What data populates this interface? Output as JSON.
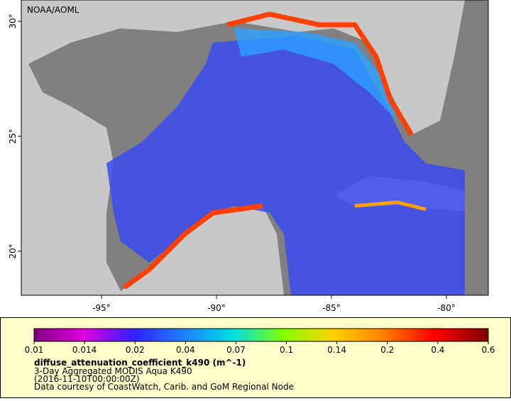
{
  "credit": "NOAA/AOML",
  "map": {
    "lon_ticks": [
      "-95°",
      "-90°",
      "-85°",
      "-80°"
    ],
    "lat_ticks": [
      "30°",
      "25°",
      "20°"
    ]
  },
  "legend": {
    "scale_ticks": [
      "0.01",
      "0.014",
      "0.02",
      "0.04",
      "0.07",
      "0.1",
      "0.14",
      "0.2",
      "0.4",
      "0.6"
    ],
    "variable": "diffuse_attenuation_coefficient_k490 (m^-1)",
    "lines": [
      "3-Day Aggregated MODIS Aqua K490",
      "(2016-11-10T00:00:00Z)",
      "Data courtesy of CoastWatch, Carib. and GoM Regional Node"
    ]
  }
}
